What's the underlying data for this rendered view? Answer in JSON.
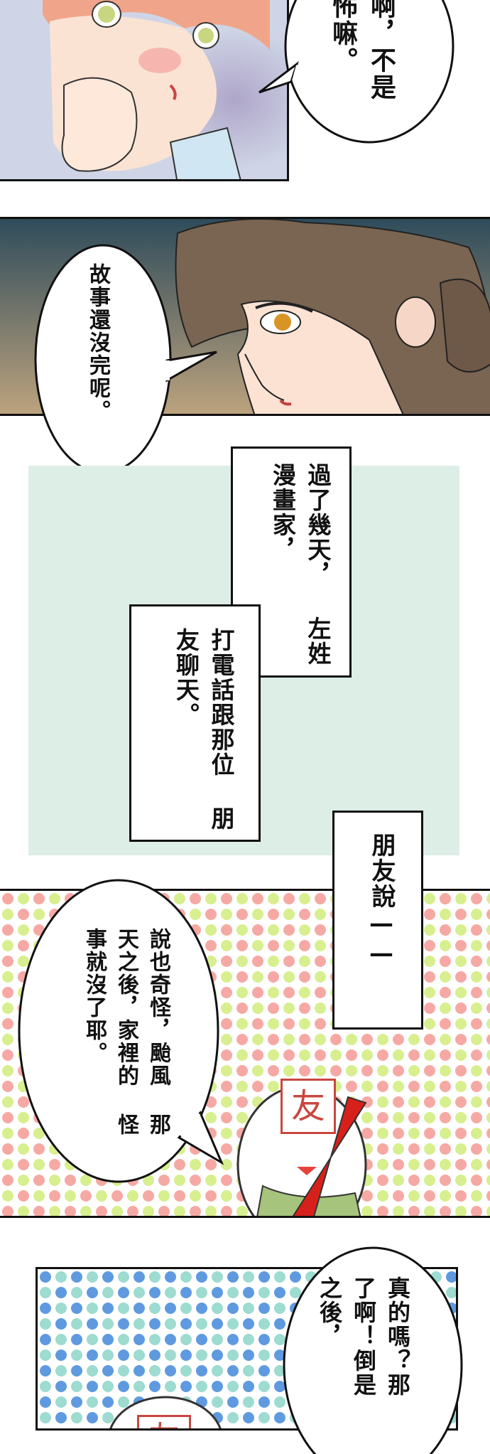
{
  "panel1": {
    "bubble_lines": [
      "啊，不是",
      "怖嘛。"
    ]
  },
  "panel2": {
    "bubble_lines": [
      "故事還沒完呢。"
    ]
  },
  "narration": {
    "box1_lines": [
      "過了幾天，",
      "左姓漫畫家，"
    ],
    "box2_lines": [
      "打電話跟那位",
      "朋友聊天。"
    ]
  },
  "panel3": {
    "caption": "朋友說——",
    "bubble_lines": [
      "說也奇怪，颱風",
      "那天之後，家裡的",
      "怪事就沒了耶。"
    ],
    "face_label": "友"
  },
  "panel4": {
    "bubble_lines": [
      "真的嗎？那",
      "了啊！倒是",
      "之後，"
    ],
    "face_label": "友"
  },
  "colors": {
    "dots_pink": "#f6a9a4",
    "dots_green": "#d7ef8e",
    "dots_blue": "#5f9ae0",
    "dots_teal": "#9edbd0",
    "narration_bg": "#ddeee7"
  }
}
